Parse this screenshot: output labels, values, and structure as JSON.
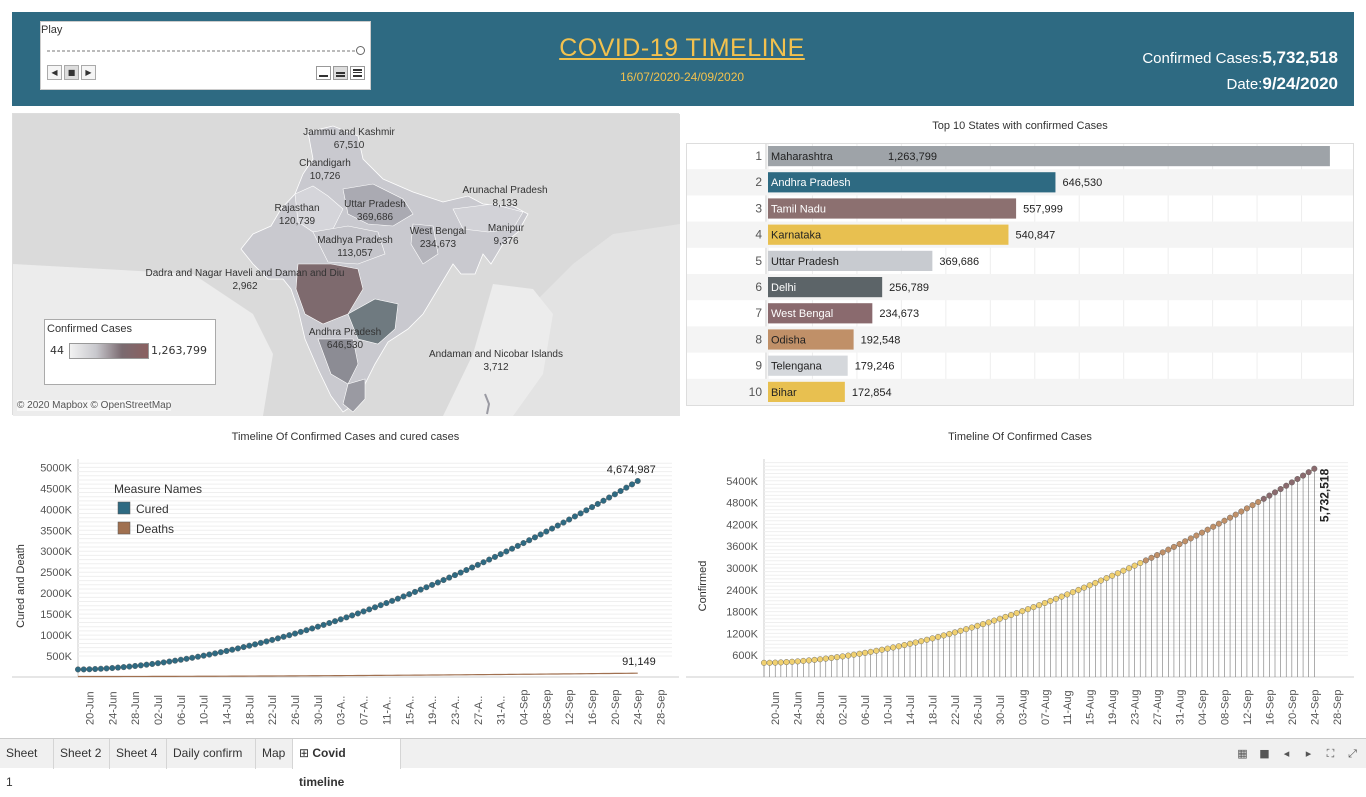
{
  "header": {
    "play_label": "Play",
    "title": "COVID-19 TIMELINE",
    "date_range": "16/07/2020-24/09/2020",
    "confirmed_label": "Confirmed Cases:",
    "confirmed_value": "5,732,518",
    "date_label": "Date:",
    "date_value": "9/24/2020"
  },
  "map": {
    "legend_title": "Confirmed Cases",
    "legend_min": "44",
    "legend_max": "1,263,799",
    "attribution": "© 2020 Mapbox © OpenStreetMap",
    "labels": [
      {
        "name": "Jammu and Kashmir",
        "value": "67,510"
      },
      {
        "name": "Chandigarh",
        "value": "10,726"
      },
      {
        "name": "Arunachal Pradesh",
        "value": "8,133"
      },
      {
        "name": "Rajasthan",
        "value": "120,739"
      },
      {
        "name": "Uttar Pradesh",
        "value": "369,686"
      },
      {
        "name": "Madhya Pradesh",
        "value": "113,057"
      },
      {
        "name": "West Bengal",
        "value": "234,673"
      },
      {
        "name": "Manipur",
        "value": "9,376"
      },
      {
        "name": "Dadra and Nagar Haveli and Daman and Diu",
        "value": "2,962"
      },
      {
        "name": "Andhra Pradesh",
        "value": "646,530"
      },
      {
        "name": "Andaman and Nicobar Islands",
        "value": "3,712"
      }
    ]
  },
  "colors": {
    "header_bg": "#2e6a82",
    "title": "#f2c14e",
    "cured": "#2e6a82",
    "deaths": "#a07050",
    "confirmed_line": "#e8c060"
  },
  "chart_data": [
    {
      "type": "bar",
      "title": "Top 10 States with confirmed Cases",
      "ranks": [
        "1",
        "2",
        "3",
        "4",
        "5",
        "6",
        "7",
        "8",
        "9",
        "10"
      ],
      "categories": [
        "Maharashtra",
        "Andhra Pradesh",
        "Tamil Nadu",
        "Karnataka",
        "Uttar Pradesh",
        "Delhi",
        "West Bengal",
        "Odisha",
        "Telengana",
        "Bihar"
      ],
      "values": [
        1263799,
        646530,
        557999,
        540847,
        369686,
        256789,
        234673,
        192548,
        179246,
        172854
      ],
      "labels": [
        "1,263,799",
        "646,530",
        "557,999",
        "540,847",
        "369,686",
        "256,789",
        "234,673",
        "192,548",
        "179,246",
        "172,854"
      ],
      "bar_colors": [
        "#9ea3a8",
        "#2e6a82",
        "#8c7070",
        "#e8c050",
        "#c8cbd0",
        "#5c6468",
        "#8a6a6e",
        "#c09068",
        "#d5d8dc",
        "#e8c050"
      ],
      "xlim": [
        0,
        1300000
      ]
    },
    {
      "type": "line",
      "title": "Timeline Of Confirmed Cases and cured cases",
      "ylabel": "Cured and Death",
      "legend_title": "Measure Names",
      "legend_placement": "top-left",
      "yticks": [
        "500K",
        "1000K",
        "1500K",
        "2000K",
        "2500K",
        "3000K",
        "3500K",
        "4000K",
        "4500K",
        "5000K"
      ],
      "ylim": [
        0,
        5200000
      ],
      "xticks": [
        "20-Jun",
        "24-Jun",
        "28-Jun",
        "02-Jul",
        "06-Jul",
        "10-Jul",
        "14-Jul",
        "18-Jul",
        "22-Jul",
        "26-Jul",
        "30-Jul",
        "03-A..",
        "07-A..",
        "11-A..",
        "15-A..",
        "19-A..",
        "23-A..",
        "27-A..",
        "31-A..",
        "04-Sep",
        "08-Sep",
        "12-Sep",
        "16-Sep",
        "20-Sep",
        "24-Sep",
        "28-Sep"
      ],
      "x_start": "2020-06-18",
      "x_end": "2020-09-24",
      "series": [
        {
          "name": "Cured",
          "start": 180000,
          "end": 4674987,
          "end_label": "4,674,987"
        },
        {
          "name": "Deaths",
          "start": 12000,
          "end": 91149,
          "end_label": "91,149"
        }
      ]
    },
    {
      "type": "line",
      "title": "Timeline Of Confirmed Cases",
      "ylabel": "Confirmed",
      "yticks": [
        "600K",
        "1200K",
        "1800K",
        "2400K",
        "3000K",
        "3600K",
        "4200K",
        "4800K",
        "5400K"
      ],
      "ylim": [
        0,
        6000000
      ],
      "xticks": [
        "20-Jun",
        "24-Jun",
        "28-Jun",
        "02-Jul",
        "06-Jul",
        "10-Jul",
        "14-Jul",
        "18-Jul",
        "22-Jul",
        "26-Jul",
        "30-Jul",
        "03-Aug",
        "07-Aug",
        "11-Aug",
        "15-Aug",
        "19-Aug",
        "23-Aug",
        "27-Aug",
        "31-Aug",
        "04-Sep",
        "08-Sep",
        "12-Sep",
        "16-Sep",
        "20-Sep",
        "24-Sep",
        "28-Sep"
      ],
      "x_start": "2020-06-18",
      "x_end": "2020-09-24",
      "series": [
        {
          "name": "Confirmed",
          "start": 390000,
          "end": 5732518,
          "end_label": "5,732,518"
        }
      ]
    }
  ],
  "tabs": [
    "Sheet 1",
    "Sheet 2",
    "Sheet 4",
    "Daily confirm",
    "Map",
    "Covid timeline"
  ],
  "active_tab": "Covid timeline"
}
